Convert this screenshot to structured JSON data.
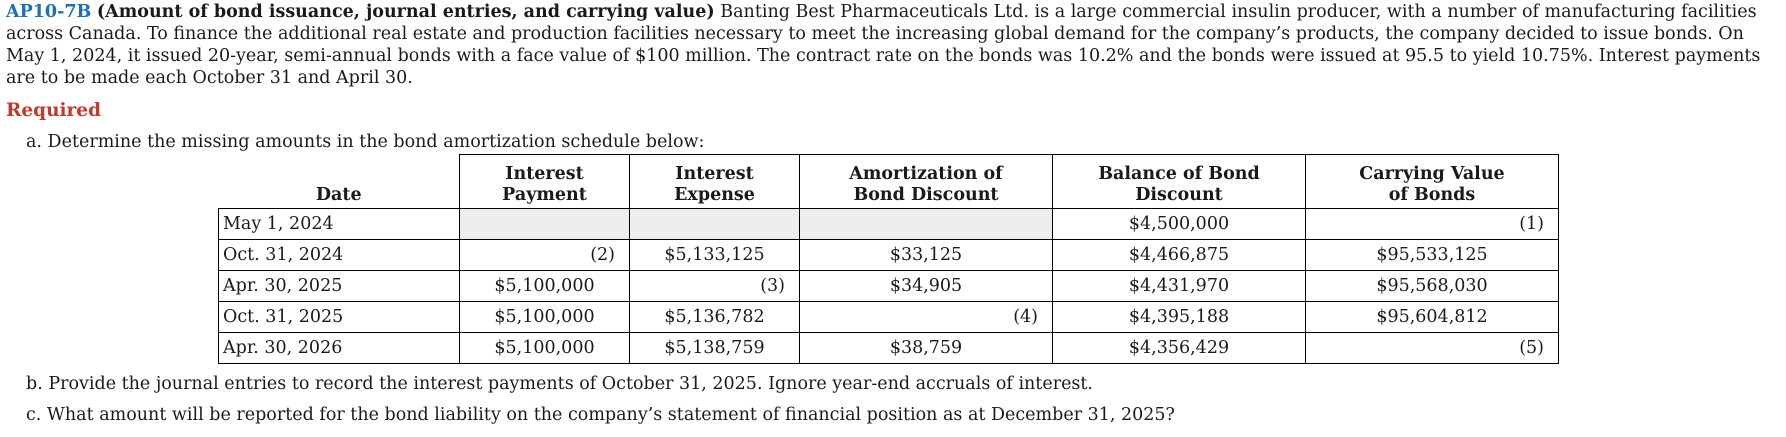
{
  "problem": {
    "code": "AP10-7B",
    "title": "(Amount of bond issuance, journal entries, and carrying value)",
    "text": "Banting Best Pharmaceuticals Ltd. is a large commercial insulin producer, with a number of manufacturing facilities across Canada. To finance the additional real estate and production facilities necessary to meet the increasing global demand for the company’s products, the company decided to issue bonds. On May 1, 2024, it issued 20-year, semi-annual bonds with a face value of $100 million. The contract rate on the bonds was 10.2% and the bonds were issued at 95.5 to yield 10.75%. Interest payments are to be made each October 31 and April 30."
  },
  "required_label": "Required",
  "questions": {
    "a": "a. Determine the missing amounts in the bond amortization schedule below:",
    "b": "b. Provide the journal entries to record the interest payments of October 31, 2025. Ignore year-end accruals of interest.",
    "c": "c. What amount will be reported for the bond liability on the company’s statement of financial position as at December 31, 2025?"
  },
  "table": {
    "headers": {
      "date": "Date",
      "interest_payment": [
        "Interest",
        "Payment"
      ],
      "interest_expense": [
        "Interest",
        "Expense"
      ],
      "amortization": [
        "Amortization of",
        "Bond Discount"
      ],
      "balance": [
        "Balance of Bond",
        "Discount"
      ],
      "carrying": [
        "Carrying Value",
        "of Bonds"
      ]
    },
    "rows": [
      {
        "date": "May 1, 2024",
        "payment": "",
        "expense": "",
        "amortization": "",
        "balance": "$4,500,000",
        "carrying": "(1)"
      },
      {
        "date": "Oct. 31, 2024",
        "payment": "(2)",
        "expense": "$5,133,125",
        "amortization": "$33,125",
        "balance": "$4,466,875",
        "carrying": "$95,533,125"
      },
      {
        "date": "Apr. 30, 2025",
        "payment": "$5,100,000",
        "expense": "(3)",
        "amortization": "$34,905",
        "balance": "$4,431,970",
        "carrying": "$95,568,030"
      },
      {
        "date": "Oct. 31, 2025",
        "payment": "$5,100,000",
        "expense": "$5,136,782",
        "amortization": "(4)",
        "balance": "$4,395,188",
        "carrying": "$95,604,812"
      },
      {
        "date": "Apr. 30, 2026",
        "payment": "$5,100,000",
        "expense": "$5,138,759",
        "amortization": "$38,759",
        "balance": "$4,356,429",
        "carrying": "(5)"
      }
    ]
  }
}
